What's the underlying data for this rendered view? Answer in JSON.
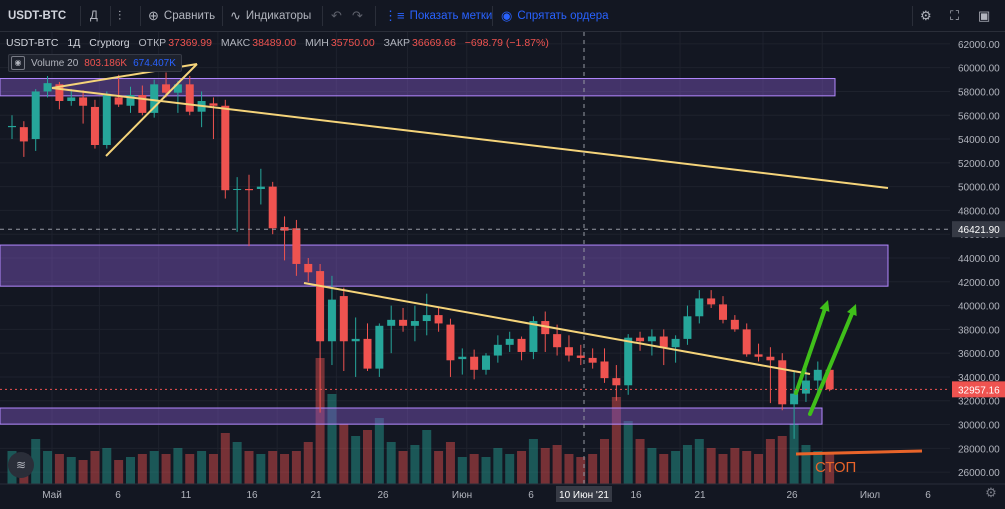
{
  "toolbar": {
    "symbol": "USDT-BTC",
    "interval": "Д",
    "compare_label": "Сравнить",
    "indicators_label": "Индикаторы",
    "show_marks_label": "Показать метки",
    "hide_orders_label": "Спрятать ордера"
  },
  "legend": {
    "symbol": "USDT-BTC",
    "interval": "1Д",
    "exchange": "Cryptorg",
    "open_label": "ОТКР",
    "open": "37369.99",
    "high_label": "МАКС",
    "high": "38489.00",
    "low_label": "МИН",
    "low": "35750.00",
    "close_label": "ЗАКР",
    "close": "36669.66",
    "change": "−698.79 (−1.87%)"
  },
  "volume_legend": {
    "name": "Volume 20",
    "value1": "803.186K",
    "value2": "674.407K"
  },
  "colors": {
    "background": "#131722",
    "up": "#26a69a",
    "down": "#ef5350",
    "trendline": "#f5d47a",
    "zone": "#7e57c2",
    "green_arrow": "#3fbf1a",
    "stop_line": "#e8642a",
    "crosshair_label": "#363a45",
    "price_label": "#ef5350"
  },
  "annotation_stop": "СТОП",
  "crosshair": {
    "price_label": "46421.90",
    "date_label": "10 Июн '21"
  },
  "last_price_label": "32957.16",
  "chart_data": {
    "type": "candlestick",
    "ylim": [
      25000,
      63000
    ],
    "y_ticks": [
      "62000.00",
      "60000.00",
      "58000.00",
      "56000.00",
      "54000.00",
      "52000.00",
      "50000.00",
      "48000.00",
      "46000.00",
      "44000.00",
      "42000.00",
      "40000.00",
      "38000.00",
      "36000.00",
      "34000.00",
      "32000.00",
      "30000.00",
      "28000.00",
      "26000.00"
    ],
    "x_ticks": [
      "Май",
      "6",
      "11",
      "16",
      "21",
      "26",
      "Июн",
      "6",
      "16",
      "21",
      "26",
      "Июл",
      "6"
    ],
    "candles": [
      {
        "o": 55000,
        "h": 56000,
        "l": 54000,
        "c": 55100,
        "v": 0.55
      },
      {
        "o": 55000,
        "h": 55500,
        "l": 52500,
        "c": 53800,
        "v": 0.5
      },
      {
        "o": 54000,
        "h": 58200,
        "l": 53000,
        "c": 58000,
        "v": 0.75
      },
      {
        "o": 58000,
        "h": 59300,
        "l": 57500,
        "c": 58700,
        "v": 0.55
      },
      {
        "o": 58600,
        "h": 58800,
        "l": 56500,
        "c": 57200,
        "v": 0.5
      },
      {
        "o": 57200,
        "h": 58200,
        "l": 56800,
        "c": 57500,
        "v": 0.45
      },
      {
        "o": 57500,
        "h": 58100,
        "l": 55300,
        "c": 56800,
        "v": 0.4
      },
      {
        "o": 56700,
        "h": 57300,
        "l": 53200,
        "c": 53500,
        "v": 0.55
      },
      {
        "o": 53500,
        "h": 58000,
        "l": 53200,
        "c": 57800,
        "v": 0.6
      },
      {
        "o": 57500,
        "h": 59400,
        "l": 56700,
        "c": 56900,
        "v": 0.4
      },
      {
        "o": 56800,
        "h": 58400,
        "l": 56200,
        "c": 57700,
        "v": 0.45
      },
      {
        "o": 57700,
        "h": 58500,
        "l": 56000,
        "c": 56200,
        "v": 0.5
      },
      {
        "o": 56200,
        "h": 59000,
        "l": 55800,
        "c": 58600,
        "v": 0.55
      },
      {
        "o": 58600,
        "h": 59600,
        "l": 57500,
        "c": 57900,
        "v": 0.5
      },
      {
        "o": 57900,
        "h": 58900,
        "l": 56200,
        "c": 58600,
        "v": 0.6
      },
      {
        "o": 58600,
        "h": 59300,
        "l": 56000,
        "c": 56300,
        "v": 0.5
      },
      {
        "o": 56300,
        "h": 58000,
        "l": 55000,
        "c": 57200,
        "v": 0.55
      },
      {
        "o": 57000,
        "h": 57500,
        "l": 54000,
        "c": 56800,
        "v": 0.5
      },
      {
        "o": 56800,
        "h": 57300,
        "l": 49000,
        "c": 49700,
        "v": 0.85
      },
      {
        "o": 49800,
        "h": 50800,
        "l": 46200,
        "c": 49800,
        "v": 0.7
      },
      {
        "o": 49800,
        "h": 51000,
        "l": 45000,
        "c": 49700,
        "v": 0.55
      },
      {
        "o": 49800,
        "h": 51500,
        "l": 48500,
        "c": 50000,
        "v": 0.5
      },
      {
        "o": 50000,
        "h": 50400,
        "l": 46000,
        "c": 46500,
        "v": 0.55
      },
      {
        "o": 46600,
        "h": 47500,
        "l": 43800,
        "c": 46300,
        "v": 0.5
      },
      {
        "o": 46500,
        "h": 47200,
        "l": 42500,
        "c": 43500,
        "v": 0.55
      },
      {
        "o": 43500,
        "h": 44000,
        "l": 42000,
        "c": 42800,
        "v": 0.7
      },
      {
        "o": 42900,
        "h": 43500,
        "l": 31000,
        "c": 37000,
        "v": 2.1
      },
      {
        "o": 37000,
        "h": 42500,
        "l": 35000,
        "c": 40500,
        "v": 1.5
      },
      {
        "o": 40800,
        "h": 41500,
        "l": 34500,
        "c": 37000,
        "v": 1.0
      },
      {
        "o": 37000,
        "h": 39000,
        "l": 34000,
        "c": 37200,
        "v": 0.8
      },
      {
        "o": 37200,
        "h": 38500,
        "l": 34500,
        "c": 34700,
        "v": 0.9
      },
      {
        "o": 34700,
        "h": 38500,
        "l": 34000,
        "c": 38300,
        "v": 1.1
      },
      {
        "o": 38300,
        "h": 40000,
        "l": 36000,
        "c": 38800,
        "v": 0.7
      },
      {
        "o": 38800,
        "h": 39800,
        "l": 37800,
        "c": 38300,
        "v": 0.55
      },
      {
        "o": 38300,
        "h": 40000,
        "l": 37000,
        "c": 38700,
        "v": 0.65
      },
      {
        "o": 38700,
        "h": 41000,
        "l": 37500,
        "c": 39200,
        "v": 0.9
      },
      {
        "o": 39200,
        "h": 39800,
        "l": 37800,
        "c": 38500,
        "v": 0.55
      },
      {
        "o": 38400,
        "h": 38900,
        "l": 34000,
        "c": 35400,
        "v": 0.7
      },
      {
        "o": 35500,
        "h": 36400,
        "l": 34200,
        "c": 35700,
        "v": 0.45
      },
      {
        "o": 35700,
        "h": 36300,
        "l": 33800,
        "c": 34600,
        "v": 0.5
      },
      {
        "o": 34600,
        "h": 36000,
        "l": 34200,
        "c": 35800,
        "v": 0.45
      },
      {
        "o": 35800,
        "h": 37500,
        "l": 35200,
        "c": 36700,
        "v": 0.6
      },
      {
        "o": 36700,
        "h": 37800,
        "l": 36100,
        "c": 37200,
        "v": 0.5
      },
      {
        "o": 37200,
        "h": 37400,
        "l": 35400,
        "c": 36100,
        "v": 0.55
      },
      {
        "o": 36100,
        "h": 39100,
        "l": 35500,
        "c": 38700,
        "v": 0.75
      },
      {
        "o": 38700,
        "h": 39500,
        "l": 36100,
        "c": 37600,
        "v": 0.6
      },
      {
        "o": 37600,
        "h": 38400,
        "l": 35800,
        "c": 36500,
        "v": 0.65
      },
      {
        "o": 36500,
        "h": 37500,
        "l": 35300,
        "c": 35800,
        "v": 0.5
      },
      {
        "o": 35800,
        "h": 36700,
        "l": 35000,
        "c": 35600,
        "v": 0.45
      },
      {
        "o": 35600,
        "h": 36400,
        "l": 34700,
        "c": 35200,
        "v": 0.5
      },
      {
        "o": 35300,
        "h": 36400,
        "l": 33500,
        "c": 33900,
        "v": 0.75
      },
      {
        "o": 33900,
        "h": 35000,
        "l": 32000,
        "c": 33300,
        "v": 1.45
      },
      {
        "o": 33300,
        "h": 37600,
        "l": 32500,
        "c": 37300,
        "v": 1.05
      },
      {
        "o": 37300,
        "h": 37800,
        "l": 36200,
        "c": 37000,
        "v": 0.75
      },
      {
        "o": 37000,
        "h": 38000,
        "l": 35800,
        "c": 37400,
        "v": 0.6
      },
      {
        "o": 37400,
        "h": 38000,
        "l": 35000,
        "c": 36500,
        "v": 0.5
      },
      {
        "o": 36500,
        "h": 37500,
        "l": 35200,
        "c": 37200,
        "v": 0.55
      },
      {
        "o": 37200,
        "h": 40000,
        "l": 36700,
        "c": 39100,
        "v": 0.65
      },
      {
        "o": 39100,
        "h": 41300,
        "l": 38500,
        "c": 40600,
        "v": 0.75
      },
      {
        "o": 40600,
        "h": 41300,
        "l": 39800,
        "c": 40100,
        "v": 0.6
      },
      {
        "o": 40100,
        "h": 40800,
        "l": 38500,
        "c": 38800,
        "v": 0.5
      },
      {
        "o": 38800,
        "h": 39200,
        "l": 37800,
        "c": 38000,
        "v": 0.6
      },
      {
        "o": 38000,
        "h": 38500,
        "l": 35700,
        "c": 35900,
        "v": 0.55
      },
      {
        "o": 35900,
        "h": 36800,
        "l": 35300,
        "c": 35700,
        "v": 0.5
      },
      {
        "o": 35700,
        "h": 36500,
        "l": 31800,
        "c": 35400,
        "v": 0.75
      },
      {
        "o": 35400,
        "h": 36000,
        "l": 31200,
        "c": 31700,
        "v": 0.8
      },
      {
        "o": 31700,
        "h": 34500,
        "l": 28800,
        "c": 32600,
        "v": 1.0
      },
      {
        "o": 32600,
        "h": 34800,
        "l": 31900,
        "c": 33700,
        "v": 0.65
      },
      {
        "o": 33700,
        "h": 35300,
        "l": 32400,
        "c": 34600,
        "v": 0.55
      },
      {
        "o": 34600,
        "h": 34700,
        "l": 32800,
        "c": 32957.16,
        "v": 0.5
      }
    ]
  }
}
